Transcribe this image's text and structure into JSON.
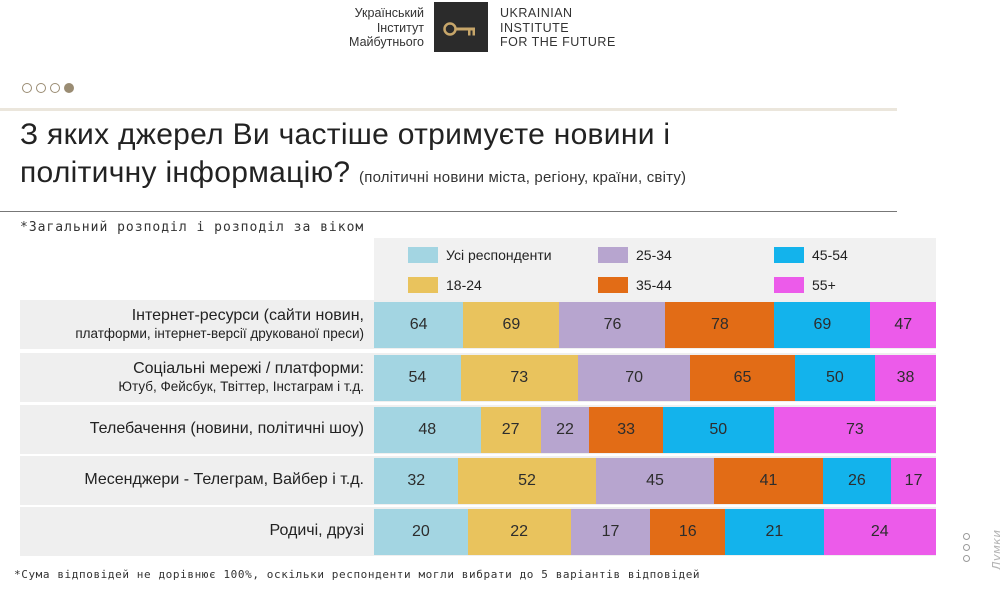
{
  "header": {
    "org_ua": [
      "Український",
      "Інститут",
      "Майбутнього"
    ],
    "org_en": [
      "UKRAINIAN",
      "INSTITUTE",
      "FOR THE FUTURE"
    ],
    "page_dots_total": 4,
    "page_dots_active": 4
  },
  "title": {
    "line1": "З яких джерел Ви частіше отримуєте новини і",
    "line2": "політичну інформацію?",
    "subtitle": "(політичні новини міста, регіону, країни, світу)"
  },
  "note_top": "*Загальний розподіл і розподіл за віком",
  "note_bottom": "*Сума відповідей не дорівнює 100%, оскільки респонденти могли вибрати до 5 варіантів відповідей",
  "watermark": "Думки",
  "colors": {
    "all": "#a3d5e2",
    "g18_24": "#e9c35d",
    "g25_34": "#b7a5cf",
    "g35_44": "#e26c16",
    "g45_54": "#13b3ec",
    "g55": "#ec5bea"
  },
  "chart_data": {
    "type": "bar",
    "orientation": "horizontal",
    "stacked": true,
    "title": "З яких джерел Ви частіше отримуєте новини і політичну інформацію?",
    "subtitle": "(політичні новини міста, регіону, країни, світу)",
    "unit": "%",
    "categories": [
      {
        "line1": "Інтернет-ресурси (сайти новин,",
        "line2": "платформи, інтернет-версії друкованої преси)"
      },
      {
        "line1": "Соціальні мережі / платформи:",
        "line2": "Ютуб, Фейсбук, Твіттер, Інстаграм і т.д."
      },
      {
        "line1": "Телебачення (новини, політичні шоу)",
        "line2": ""
      },
      {
        "line1": "Месенджери - Телеграм, Вайбер і т.д.",
        "line2": ""
      },
      {
        "line1": "Родичі, друзі",
        "line2": ""
      }
    ],
    "series": [
      {
        "name": "Усі респонденти",
        "color_key": "all",
        "values": [
          64,
          54,
          48,
          32,
          20
        ]
      },
      {
        "name": "18-24",
        "color_key": "g18_24",
        "values": [
          69,
          73,
          27,
          52,
          22
        ]
      },
      {
        "name": "25-34",
        "color_key": "g25_34",
        "values": [
          76,
          70,
          22,
          45,
          17
        ]
      },
      {
        "name": "35-44",
        "color_key": "g35_44",
        "values": [
          78,
          65,
          33,
          41,
          16
        ]
      },
      {
        "name": "45-54",
        "color_key": "g45_54",
        "values": [
          69,
          50,
          50,
          26,
          21
        ]
      },
      {
        "name": "55+",
        "color_key": "g55",
        "values": [
          47,
          38,
          73,
          17,
          24
        ]
      }
    ],
    "legend_position": "top"
  }
}
